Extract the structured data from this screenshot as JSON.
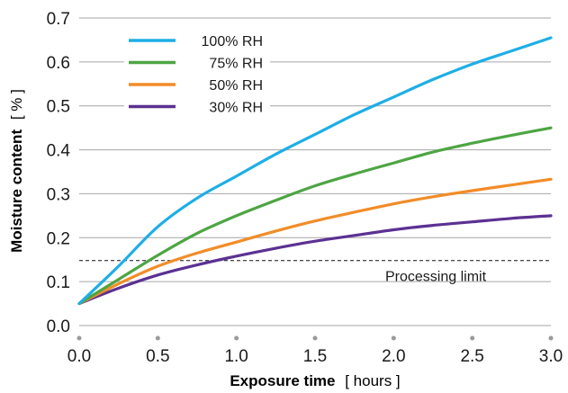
{
  "chart_data": {
    "type": "line",
    "xlabel": "Exposure time",
    "xlabel_unit": "[ hours ]",
    "ylabel": "Moisture content",
    "ylabel_unit": "[ % ]",
    "xlim": [
      0,
      3
    ],
    "ylim": [
      0,
      0.7
    ],
    "xticks": [
      "0.0",
      "0.5",
      "1.0",
      "1.5",
      "2.0",
      "2.5",
      "3.0"
    ],
    "yticks": [
      "0.0",
      "0.1",
      "0.2",
      "0.3",
      "0.4",
      "0.5",
      "0.6",
      "0.7"
    ],
    "grid": "horizontal",
    "legend_position": "top-left",
    "series": [
      {
        "name": "100% RH",
        "color": "#1eaee6",
        "x": [
          0,
          0.25,
          0.5,
          0.75,
          1.0,
          1.25,
          1.5,
          1.75,
          2.0,
          2.25,
          2.5,
          2.75,
          3.0
        ],
        "y": [
          0.05,
          0.135,
          0.225,
          0.29,
          0.34,
          0.39,
          0.435,
          0.48,
          0.52,
          0.56,
          0.595,
          0.625,
          0.655
        ]
      },
      {
        "name": "75% RH",
        "color": "#4da543",
        "x": [
          0,
          0.25,
          0.5,
          0.75,
          1.0,
          1.25,
          1.5,
          1.75,
          2.0,
          2.25,
          2.5,
          2.75,
          3.0
        ],
        "y": [
          0.05,
          0.105,
          0.16,
          0.21,
          0.25,
          0.285,
          0.318,
          0.345,
          0.37,
          0.395,
          0.415,
          0.433,
          0.45
        ]
      },
      {
        "name": "50% RH",
        "color": "#f28c28",
        "x": [
          0,
          0.25,
          0.5,
          0.75,
          1.0,
          1.25,
          1.5,
          1.75,
          2.0,
          2.25,
          2.5,
          2.75,
          3.0
        ],
        "y": [
          0.05,
          0.095,
          0.135,
          0.165,
          0.19,
          0.215,
          0.238,
          0.258,
          0.277,
          0.293,
          0.307,
          0.32,
          0.333
        ]
      },
      {
        "name": "30% RH",
        "color": "#5b3192",
        "x": [
          0,
          0.25,
          0.5,
          0.75,
          1.0,
          1.25,
          1.5,
          1.75,
          2.0,
          2.25,
          2.5,
          2.75,
          3.0
        ],
        "y": [
          0.05,
          0.085,
          0.115,
          0.138,
          0.158,
          0.176,
          0.192,
          0.205,
          0.218,
          0.228,
          0.236,
          0.244,
          0.25
        ]
      }
    ],
    "reference_line": {
      "y": 0.148,
      "label": "Processing limit",
      "style": "dashed"
    }
  }
}
